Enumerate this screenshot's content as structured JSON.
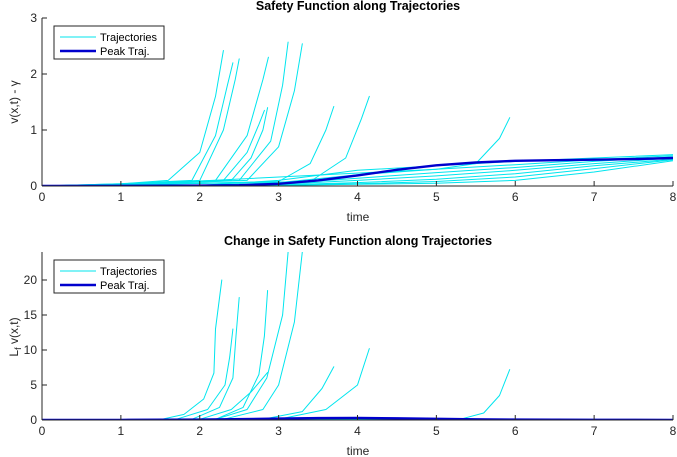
{
  "colors": {
    "trajectory": "#00e5ee",
    "peak": "#0000cd",
    "axis": "#262626"
  },
  "chart_data": [
    {
      "type": "line",
      "title": "Safety Function along Trajectories",
      "xlabel": "time",
      "ylabel": "v(x,t) - γ",
      "xlim": [
        0,
        8
      ],
      "ylim": [
        0,
        3
      ],
      "xticks": [
        "0",
        "1",
        "2",
        "3",
        "4",
        "5",
        "6",
        "7",
        "8"
      ],
      "yticks": [
        "0",
        "1",
        "2",
        "3"
      ],
      "grid": false,
      "legend": {
        "placement": "top-left",
        "entries": [
          "Trajectories",
          "Peak Traj."
        ]
      },
      "series": [
        {
          "name": "Trajectories",
          "style": "thin",
          "x": [
            0,
            1,
            1.6,
            2.0,
            2.2,
            2.3
          ],
          "y": [
            0,
            0.04,
            0.1,
            0.6,
            1.6,
            2.42
          ]
        },
        {
          "name": "Trajectories",
          "style": "thin",
          "x": [
            0,
            1,
            1.9,
            2.2,
            2.35,
            2.42
          ],
          "y": [
            0,
            0.04,
            0.1,
            0.9,
            1.8,
            2.2
          ]
        },
        {
          "name": "Trajectories",
          "style": "thin",
          "x": [
            0,
            1,
            2.0,
            2.3,
            2.45,
            2.5
          ],
          "y": [
            0,
            0.03,
            0.1,
            1.0,
            1.9,
            2.27
          ]
        },
        {
          "name": "Trajectories",
          "style": "thin",
          "x": [
            0,
            1,
            2.2,
            2.6,
            2.8,
            2.87
          ],
          "y": [
            0,
            0.03,
            0.1,
            0.9,
            1.9,
            2.3
          ]
        },
        {
          "name": "Trajectories",
          "style": "thin",
          "x": [
            0,
            1,
            2.3,
            2.6,
            2.75,
            2.82
          ],
          "y": [
            0,
            0.03,
            0.1,
            0.6,
            1.1,
            1.35
          ]
        },
        {
          "name": "Trajectories",
          "style": "thin",
          "x": [
            0,
            1,
            2.4,
            2.65,
            2.8,
            2.86
          ],
          "y": [
            0,
            0.03,
            0.1,
            0.5,
            1.0,
            1.4
          ]
        },
        {
          "name": "Trajectories",
          "style": "thin",
          "x": [
            0,
            1,
            2.5,
            2.9,
            3.05,
            3.12
          ],
          "y": [
            0,
            0.02,
            0.1,
            0.8,
            1.8,
            2.57
          ]
        },
        {
          "name": "Trajectories",
          "style": "thin",
          "x": [
            0,
            1,
            2.6,
            3.0,
            3.2,
            3.3
          ],
          "y": [
            0,
            0.02,
            0.1,
            0.7,
            1.7,
            2.54
          ]
        },
        {
          "name": "Trajectories",
          "style": "thin",
          "x": [
            0,
            1,
            3.0,
            3.4,
            3.6,
            3.7
          ],
          "y": [
            0,
            0.02,
            0.08,
            0.4,
            1.0,
            1.42
          ]
        },
        {
          "name": "Trajectories",
          "style": "thin",
          "x": [
            0,
            1,
            3.4,
            3.85,
            4.05,
            4.15
          ],
          "y": [
            0,
            0.02,
            0.08,
            0.5,
            1.2,
            1.6
          ]
        },
        {
          "name": "Trajectories",
          "style": "thin",
          "x": [
            0,
            1,
            5.0,
            5.5,
            5.8,
            5.93
          ],
          "y": [
            0,
            0.02,
            0.3,
            0.4,
            0.85,
            1.22
          ]
        },
        {
          "name": "Trajectories",
          "style": "thin",
          "x": [
            0,
            2,
            3,
            4,
            5,
            6,
            7,
            8
          ],
          "y": [
            0,
            0.01,
            0.1,
            0.28,
            0.36,
            0.44,
            0.5,
            0.56
          ]
        },
        {
          "name": "Trajectories",
          "style": "thin",
          "x": [
            0,
            2,
            3,
            4,
            5,
            6,
            7,
            8
          ],
          "y": [
            0,
            0.01,
            0.06,
            0.2,
            0.3,
            0.38,
            0.47,
            0.54
          ]
        },
        {
          "name": "Trajectories",
          "style": "thin",
          "x": [
            0,
            2,
            3,
            4,
            5,
            6,
            7,
            8
          ],
          "y": [
            0,
            0.01,
            0.04,
            0.14,
            0.24,
            0.33,
            0.44,
            0.52
          ]
        },
        {
          "name": "Trajectories",
          "style": "thin",
          "x": [
            0,
            2,
            3,
            4,
            5,
            6,
            7,
            8
          ],
          "y": [
            0,
            0.01,
            0.03,
            0.1,
            0.18,
            0.28,
            0.4,
            0.5
          ]
        },
        {
          "name": "Trajectories",
          "style": "thin",
          "x": [
            0,
            2,
            3,
            4,
            5,
            6,
            7,
            8
          ],
          "y": [
            0,
            0.0,
            0.02,
            0.06,
            0.12,
            0.22,
            0.36,
            0.48
          ]
        },
        {
          "name": "Trajectories",
          "style": "thin",
          "x": [
            0,
            2,
            3,
            4,
            5,
            6,
            7,
            8
          ],
          "y": [
            0,
            0.0,
            0.02,
            0.04,
            0.08,
            0.16,
            0.31,
            0.47
          ]
        },
        {
          "name": "Trajectories",
          "style": "thin",
          "x": [
            0,
            2,
            3,
            4,
            5,
            6,
            7,
            8
          ],
          "y": [
            0,
            0.0,
            0.01,
            0.03,
            0.05,
            0.1,
            0.25,
            0.45
          ]
        },
        {
          "name": "Peak Traj.",
          "style": "thick",
          "x": [
            0,
            1,
            2,
            2.5,
            3,
            3.5,
            4,
            4.5,
            5,
            5.5,
            6,
            6.5,
            7,
            7.5,
            8
          ],
          "y": [
            0,
            0.003,
            0.008,
            0.015,
            0.04,
            0.1,
            0.19,
            0.29,
            0.37,
            0.42,
            0.45,
            0.46,
            0.47,
            0.48,
            0.5
          ]
        }
      ]
    },
    {
      "type": "line",
      "title": "Change in Safety Function along Trajectories",
      "xlabel": "time",
      "ylabel": "L_f v(x,t)",
      "xlim": [
        0,
        8
      ],
      "ylim": [
        0,
        24
      ],
      "xticks": [
        "0",
        "1",
        "2",
        "3",
        "4",
        "5",
        "6",
        "7",
        "8"
      ],
      "yticks": [
        "0",
        "5",
        "10",
        "15",
        "20"
      ],
      "grid": false,
      "legend": {
        "placement": "top-left",
        "entries": [
          "Trajectories",
          "Peak Traj."
        ]
      },
      "series": [
        {
          "name": "Trajectories",
          "style": "thin",
          "x": [
            0,
            1.5,
            1.8,
            2.05,
            2.18,
            2.2,
            2.28
          ],
          "y": [
            0,
            0.05,
            0.8,
            3,
            6.7,
            13,
            20
          ]
        },
        {
          "name": "Trajectories",
          "style": "thin",
          "x": [
            0,
            1.7,
            2.1,
            2.32,
            2.38,
            2.42
          ],
          "y": [
            0,
            0.1,
            1.5,
            5,
            9,
            13
          ]
        },
        {
          "name": "Trajectories",
          "style": "thin",
          "x": [
            0,
            1.9,
            2.25,
            2.42,
            2.46,
            2.5
          ],
          "y": [
            0,
            0.1,
            1.8,
            6,
            12,
            17.5
          ]
        },
        {
          "name": "Trajectories",
          "style": "thin",
          "x": [
            0,
            2.2,
            2.55,
            2.75,
            2.82,
            2.86
          ],
          "y": [
            0,
            0.1,
            1.8,
            6.5,
            12,
            18.5
          ]
        },
        {
          "name": "Trajectories",
          "style": "thin",
          "x": [
            0,
            2.0,
            2.4,
            2.65,
            2.8,
            2.86
          ],
          "y": [
            0,
            0.1,
            1.5,
            4.0,
            6.0,
            6.8
          ]
        },
        {
          "name": "Trajectories",
          "style": "thin",
          "x": [
            0,
            2.2,
            2.6,
            2.85,
            3.05,
            3.12
          ],
          "y": [
            0,
            0.1,
            1.5,
            6.0,
            15,
            24
          ]
        },
        {
          "name": "Trajectories",
          "style": "thin",
          "x": [
            0,
            2.3,
            2.8,
            3.0,
            3.2,
            3.3
          ],
          "y": [
            0,
            0.1,
            1.5,
            5.0,
            14,
            24
          ]
        },
        {
          "name": "Trajectories",
          "style": "thin",
          "x": [
            0,
            2.8,
            3.3,
            3.55,
            3.7
          ],
          "y": [
            0,
            0.1,
            1.2,
            4.5,
            7.6
          ]
        },
        {
          "name": "Trajectories",
          "style": "thin",
          "x": [
            0,
            3.0,
            3.6,
            4.0,
            4.15
          ],
          "y": [
            0,
            0.1,
            1.5,
            5.0,
            10.2
          ]
        },
        {
          "name": "Trajectories",
          "style": "thin",
          "x": [
            0,
            5.3,
            5.6,
            5.8,
            5.93
          ],
          "y": [
            0,
            0.1,
            1.0,
            3.5,
            7.2
          ]
        },
        {
          "name": "Trajectories",
          "style": "thin",
          "x": [
            0,
            2,
            4,
            6,
            8
          ],
          "y": [
            0,
            0.04,
            0.12,
            0.08,
            0.06
          ]
        },
        {
          "name": "Peak Traj.",
          "style": "thick",
          "x": [
            0,
            1,
            2,
            3,
            3.5,
            4,
            4.5,
            5,
            5.5,
            6,
            7,
            8
          ],
          "y": [
            0,
            0.01,
            0.05,
            0.2,
            0.27,
            0.3,
            0.25,
            0.17,
            0.1,
            0.05,
            0.03,
            0.02
          ]
        }
      ]
    }
  ]
}
